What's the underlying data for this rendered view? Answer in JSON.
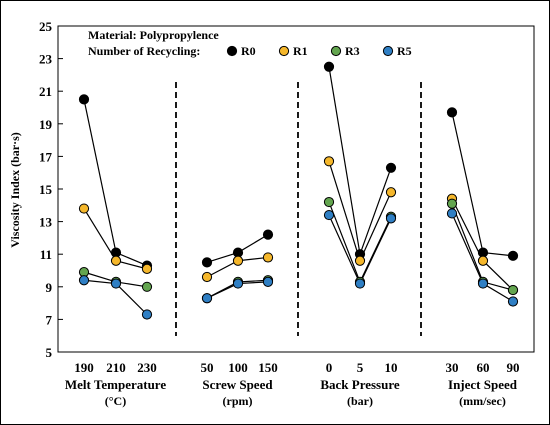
{
  "chart_data": {
    "type": "line",
    "ylabel": "Viscosity Index (bar·s)",
    "ylim": [
      5,
      25
    ],
    "yticks": [
      5,
      7,
      9,
      11,
      13,
      15,
      17,
      19,
      21,
      23,
      25
    ],
    "grid": false,
    "legend": {
      "line1": "Material: Polypropylence",
      "line2": "Number of Recycling:",
      "placement": "top-left"
    },
    "series": [
      {
        "name": "R0",
        "color": "#000000"
      },
      {
        "name": "R1",
        "color": "#f5b72b"
      },
      {
        "name": "R3",
        "color": "#63a54f"
      },
      {
        "name": "R5",
        "color": "#2f7fc4"
      }
    ],
    "groups": [
      {
        "label": "Melt Temperature",
        "unit": "(°C)",
        "categories": [
          "190",
          "210",
          "230"
        ],
        "values": {
          "R0": [
            20.5,
            11.1,
            10.3
          ],
          "R1": [
            13.8,
            10.6,
            10.1
          ],
          "R3": [
            9.9,
            9.3,
            9.0
          ],
          "R5": [
            9.4,
            9.2,
            7.3
          ]
        }
      },
      {
        "label": "Screw Speed",
        "unit": "(rpm)",
        "categories": [
          "50",
          "100",
          "150"
        ],
        "values": {
          "R0": [
            10.5,
            11.1,
            12.2
          ],
          "R1": [
            9.6,
            10.6,
            10.8
          ],
          "R3": [
            8.3,
            9.3,
            9.4
          ],
          "R5": [
            8.3,
            9.2,
            9.3
          ]
        }
      },
      {
        "label": "Back Pressure",
        "unit": "(bar)",
        "categories": [
          "0",
          "5",
          "10"
        ],
        "values": {
          "R0": [
            22.5,
            11.0,
            16.3
          ],
          "R1": [
            16.7,
            10.6,
            14.8
          ],
          "R3": [
            14.2,
            9.3,
            13.3
          ],
          "R5": [
            13.4,
            9.2,
            13.2
          ]
        }
      },
      {
        "label": "Inject Speed",
        "unit": "(mm/sec)",
        "categories": [
          "30",
          "60",
          "90"
        ],
        "values": {
          "R0": [
            19.7,
            11.1,
            10.9
          ],
          "R1": [
            14.4,
            10.6,
            8.8
          ],
          "R3": [
            14.1,
            9.3,
            8.8
          ],
          "R5": [
            13.5,
            9.2,
            8.1
          ]
        }
      }
    ]
  }
}
